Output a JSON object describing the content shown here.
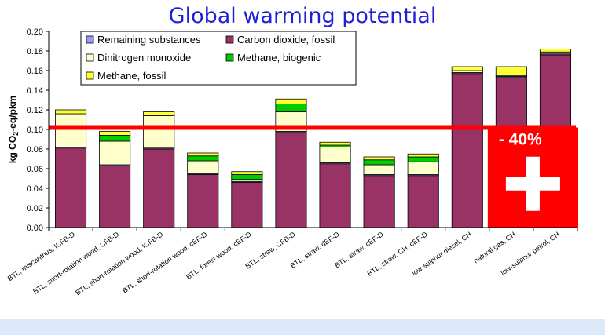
{
  "chart_data": {
    "type": "bar",
    "stacked": true,
    "title": "Global warming potential",
    "ylabel": "kg CO2-eq/pkm",
    "ylabel_main": "kg CO",
    "ylabel_sub": "2",
    "ylabel_tail": "-eq/pkm",
    "xlabel": "",
    "ylim": [
      0,
      0.2
    ],
    "yticks": [
      "0.00",
      "0.02",
      "0.04",
      "0.06",
      "0.08",
      "0.10",
      "0.12",
      "0.14",
      "0.16",
      "0.18",
      "0.20"
    ],
    "ytick_values": [
      0,
      0.02,
      0.04,
      0.06,
      0.08,
      0.1,
      0.12,
      0.14,
      0.16,
      0.18,
      0.2
    ],
    "grid": false,
    "legend_position": "top-left",
    "legend": [
      "Remaining substances",
      "Carbon dioxide, fossil",
      "Dinitrogen monoxide",
      "Methane, biogenic",
      "Methane, fossil"
    ],
    "categories": [
      "BTL, miscanthus, ICFB-D",
      "BTL, short-rotation wood, CFB-D",
      "BTL, short-rotation wood, ICFB-D",
      "BTL, short-rotation wood, cEF-D",
      "BTL, forest wood, cEF-D",
      "BTL, straw, CFB-D",
      "BTL, straw, dEF-D",
      "BTL, straw, cEF-D",
      "BTL, straw, CH, cEF-D",
      "low-sulphur diesel, CH",
      "natural gas, CH",
      "low-sulphur petrol, CH"
    ],
    "series": [
      {
        "name": "Carbon dioxide, fossil",
        "color": "#993366",
        "values": [
          0.081,
          0.063,
          0.08,
          0.054,
          0.046,
          0.097,
          0.065,
          0.053,
          0.053,
          0.157,
          0.153,
          0.176
        ]
      },
      {
        "name": "Remaining substances",
        "color": "#9999ff",
        "values": [
          0.001,
          0.001,
          0.001,
          0.001,
          0.001,
          0.001,
          0.001,
          0.001,
          0.001,
          0.001,
          0.001,
          0.001
        ]
      },
      {
        "name": "Dinitrogen monoxide",
        "color": "#ffffcc",
        "values": [
          0.034,
          0.024,
          0.033,
          0.013,
          0.002,
          0.02,
          0.016,
          0.01,
          0.013,
          0.002,
          0.001,
          0.002
        ]
      },
      {
        "name": "Methane, biogenic",
        "color": "#00cc00",
        "values": [
          0.0,
          0.006,
          0.0,
          0.005,
          0.005,
          0.008,
          0.002,
          0.005,
          0.005,
          0.0,
          0.0,
          0.0
        ]
      },
      {
        "name": "Methane, fossil",
        "color": "#ffff33",
        "values": [
          0.004,
          0.004,
          0.004,
          0.003,
          0.003,
          0.005,
          0.003,
          0.003,
          0.003,
          0.004,
          0.009,
          0.003
        ]
      }
    ],
    "reference_line": {
      "value": 0.102,
      "color": "#ff0000"
    },
    "callout": {
      "label": "- 40%",
      "color": "#ff0000",
      "spans_categories": [
        10,
        11
      ],
      "from_value": 0.0,
      "to_value": 0.102
    }
  }
}
